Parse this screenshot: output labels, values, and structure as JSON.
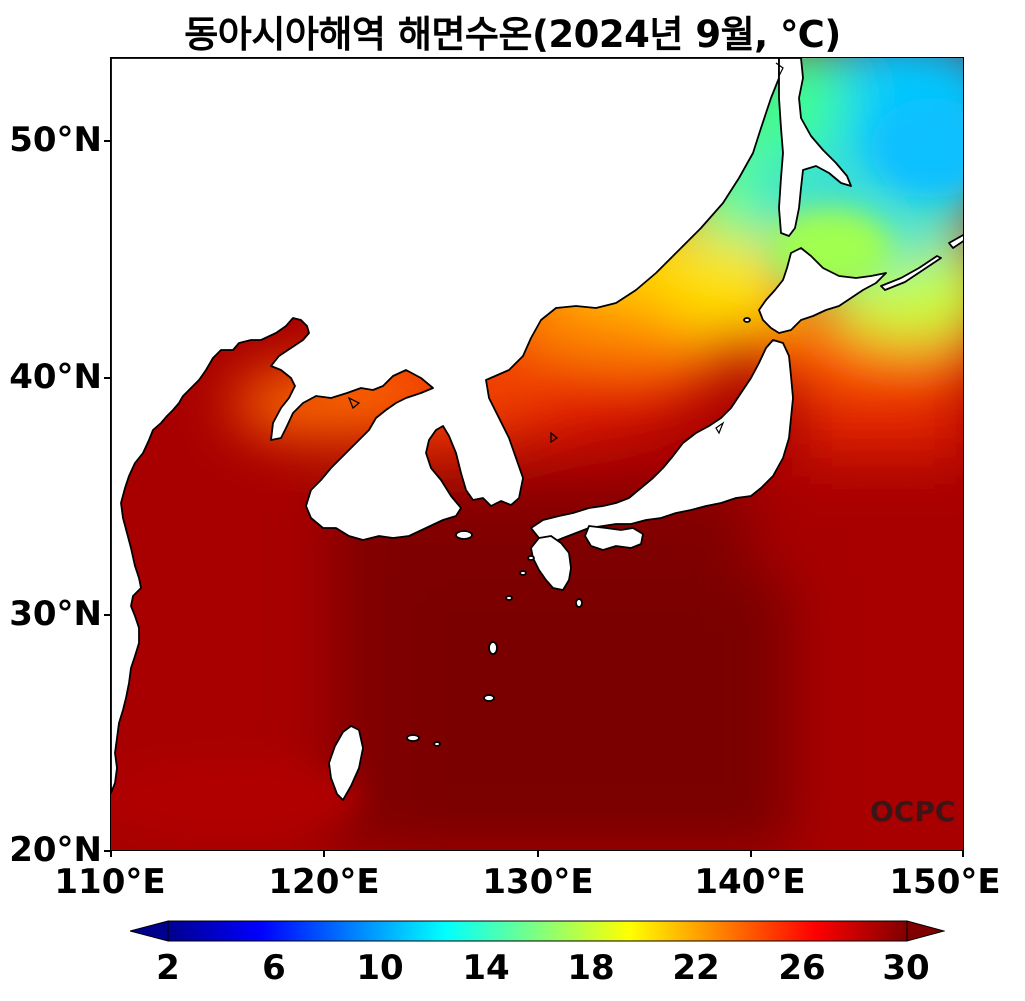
{
  "title": "동아시아해역 해면수온(2024년 9월, ℃)",
  "axes": {
    "lat_labels": [
      "50°N",
      "40°N",
      "30°N",
      "20°N"
    ],
    "lon_labels": [
      "110°E",
      "120°E",
      "130°E",
      "140°E",
      "150°E"
    ],
    "lat_values": [
      50,
      40,
      30,
      20
    ],
    "lon_values": [
      110,
      120,
      130,
      140,
      150
    ],
    "xlim": [
      110,
      150
    ],
    "ylim": [
      20,
      53.5
    ]
  },
  "colorbar": {
    "ticks": [
      "2",
      "6",
      "10",
      "14",
      "18",
      "22",
      "26",
      "30"
    ],
    "range": [
      2,
      30
    ],
    "colormap": "jet",
    "extend": "both"
  },
  "watermark": "OCPC",
  "colors": {
    "land": "#ffffff",
    "coastline": "#000000",
    "sst_cold": "#00d0ff",
    "sst_warm": "#800000"
  }
}
